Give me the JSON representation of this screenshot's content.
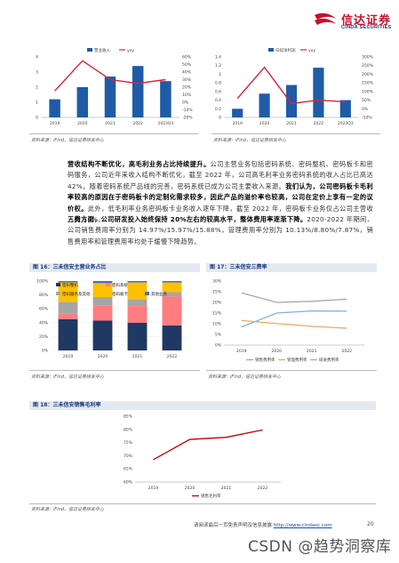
{
  "header": {
    "logo_cn": "信达证券",
    "logo_en": "CINDA SECURITIES",
    "brand_color": "#c8102e",
    "navy": "#1a3a7a"
  },
  "top_left_chart": {
    "source": "资料来源：iFind，信达证券研发中心",
    "chart_data": {
      "type": "bar",
      "categories": [
        "2019",
        "2020",
        "2021",
        "2022",
        "2023Q3"
      ],
      "series": [
        {
          "name": "营业收入",
          "kind": "bar",
          "values": [
            1.2,
            2.0,
            2.7,
            3.4,
            2.4
          ],
          "color": "#1f5ba6"
        },
        {
          "name": "yoy",
          "kind": "line",
          "axis": "right",
          "values": [
            15,
            55,
            30,
            25,
            30
          ],
          "color": "#d9263b"
        }
      ],
      "ylim": [
        0,
        4
      ],
      "y2lim": [
        -20,
        60
      ],
      "yticks": [
        "0",
        "1",
        "2",
        "3",
        "4"
      ],
      "y2ticks": [
        "-20%",
        "-10%",
        "0%",
        "10%",
        "20%",
        "30%",
        "40%",
        "50%",
        "60%"
      ]
    }
  },
  "top_right_chart": {
    "source": "资料来源：iFind，信达证券研发中心",
    "chart_data": {
      "type": "bar",
      "categories": [
        "2019",
        "2020",
        "2021",
        "2022",
        "2023Q3"
      ],
      "series": [
        {
          "name": "归母净利润",
          "kind": "bar",
          "values": [
            0.2,
            0.55,
            0.75,
            1.15,
            0.4
          ],
          "color": "#1f5ba6"
        },
        {
          "name": "yoy",
          "kind": "line",
          "axis": "right",
          "values": [
            60,
            240,
            30,
            50,
            40
          ],
          "color": "#d9263b"
        }
      ],
      "ylim": [
        0,
        1.4
      ],
      "y2lim": [
        -50,
        300
      ],
      "yticks": [
        "0",
        "0.2",
        "0.4",
        "0.6",
        "0.8",
        "1",
        "1.2",
        "1.4"
      ],
      "y2ticks": [
        "-50%",
        "0%",
        "50%",
        "100%",
        "150%",
        "200%",
        "250%",
        "300%"
      ]
    }
  },
  "paragraphs": [
    {
      "bold_lead": "营收结构不断优化，高毛利业务占比持续提升。",
      "body": "公司主营业务包括密码系统、密码整机、密码板卡和密码服务，公司近年来收入结构不断优化，截至 2022 年，公司高毛利率业务密码系统的收入占比已高达 42%。随着密码系统产品线的完善，密码系统已成为公司主要收入来源。",
      "bold_mid": "我们认为，公司密码板卡毛利率较高的原因在于密码板卡的定制化需求较多，因此产品的溢价率也较高，公司在定价上享有一定的议价权。",
      "tail": "此外，低毛利率业务密码板卡业务收入逐年下降，截至 2022 年，密码板卡业务仅占公司主营收入的 14%。"
    },
    {
      "bold_lead": "三费方面，公司研发投入始终保持 20%左右的较高水平，整体费用率逐渐下降。",
      "body": "2020-2022 年期间，公司销售费用率分别为 14.97%/15.97%/15.88%，管理费用率分别为 10.13%/8.80%/7.87%，销售费用率和管理费用率均处于缓慢下降趋势。"
    }
  ],
  "fig16": {
    "title_num": "图 16：",
    "title": "三未信安主营业务占比",
    "source": "资料来源：iFind，信达证券研发中心",
    "chart_data": {
      "type": "bar",
      "stacked": true,
      "categories": [
        "2019",
        "2020",
        "2021",
        "2022"
      ],
      "series": [
        {
          "name": "密码整机",
          "values": [
            45,
            43,
            40,
            36
          ],
          "color": "#1f3864"
        },
        {
          "name": "密码系统",
          "values": [
            8,
            22,
            24,
            42
          ],
          "color": "#ff7c80"
        },
        {
          "name": "密码服务及其他",
          "values": [
            17,
            12,
            10,
            6
          ],
          "color": "#a6a6a6"
        },
        {
          "name": "密码板卡",
          "values": [
            28,
            20,
            24,
            14
          ],
          "color": "#ffc000"
        },
        {
          "name": "其他业务",
          "values": [
            2,
            3,
            2,
            2
          ],
          "color": "#4472c4"
        }
      ],
      "ylim": [
        0,
        100
      ],
      "yticks": [
        "0%",
        "20%",
        "40%",
        "60%",
        "80%",
        "100%"
      ]
    }
  },
  "fig17": {
    "title_num": "图 17：",
    "title": "三未信安三费率",
    "source": "资料来源：iFind，信达证券研发中心",
    "chart_data": {
      "type": "line",
      "categories": [
        "2019",
        "2020",
        "2021",
        "2022"
      ],
      "series": [
        {
          "name": "销售费用率",
          "values": [
            8.5,
            15.0,
            16.0,
            15.9
          ],
          "color": "#7fb2d9"
        },
        {
          "name": "管理费用率",
          "values": [
            11.5,
            10.1,
            8.8,
            7.9
          ],
          "color": "#f0a85a"
        },
        {
          "name": "研发费用率",
          "values": [
            24.5,
            20.0,
            20.5,
            21.5
          ],
          "color": "#a6a6a6"
        }
      ],
      "ylim": [
        0,
        30
      ],
      "yticks": [
        "0%",
        "5%",
        "10%",
        "15%",
        "20%",
        "25%",
        "30%"
      ]
    }
  },
  "fig18": {
    "title_num": "图 18：",
    "title": "三未信安销售毛利率",
    "source": "资料来源：iFind，信达证券研发中心",
    "chart_data": {
      "type": "line",
      "categories": [
        "2019",
        "2020",
        "2021",
        "2022"
      ],
      "series": [
        {
          "name": "销售毛利率",
          "values": [
            68.5,
            76.2,
            77.0,
            79.8
          ],
          "color": "#c00000"
        }
      ],
      "ylim": [
        60,
        85
      ],
      "yticks": [
        "60%",
        "65%",
        "70%",
        "75%",
        "80%",
        "85%"
      ]
    }
  },
  "footer": {
    "text": "请阅读最后一页免责声明及信息披露",
    "link": "http://www.cindasc.com",
    "page": "20"
  },
  "watermark": "CSDN @趋势洞察库"
}
